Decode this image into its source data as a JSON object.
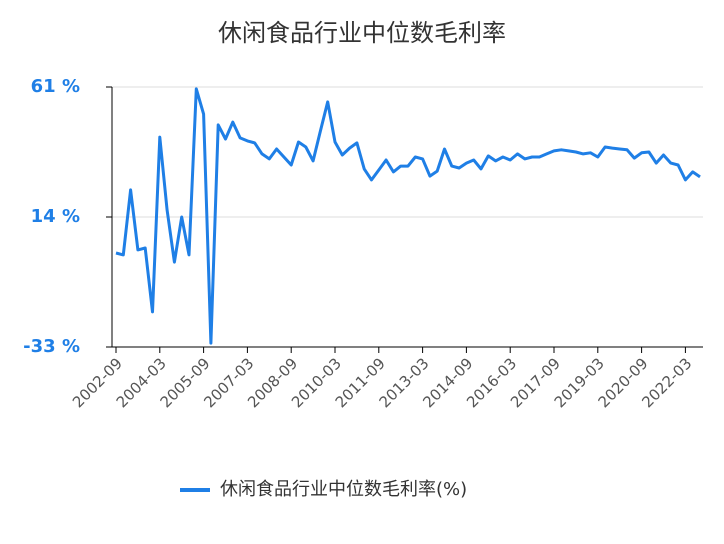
{
  "chart_data": {
    "type": "line",
    "title": "休闲食品行业中位数毛利率",
    "categories": [
      "2002-09",
      null,
      null,
      null,
      null,
      null,
      "2004-03",
      null,
      null,
      null,
      null,
      null,
      "2005-09",
      null,
      null,
      null,
      null,
      null,
      "2007-03",
      null,
      null,
      null,
      null,
      null,
      "2008-09",
      null,
      null,
      null,
      null,
      null,
      "2010-03",
      null,
      null,
      null,
      null,
      null,
      "2011-09",
      null,
      null,
      null,
      null,
      null,
      "2013-03",
      null,
      null,
      null,
      null,
      null,
      "2014-09",
      null,
      null,
      null,
      null,
      null,
      "2016-03",
      null,
      null,
      null,
      null,
      null,
      "2017-09",
      null,
      null,
      null,
      null,
      null,
      "2019-03",
      null,
      null,
      null,
      null,
      null,
      "2020-09",
      null,
      null,
      null,
      null,
      null,
      "2022-03",
      null,
      null
    ],
    "series": [
      {
        "name": "休闲食品行业中位数毛利率(%)",
        "color": "#1f7fe6",
        "values": [
          1.0,
          0.3,
          23.8,
          2.1,
          2.8,
          -20.3,
          42.9,
          16.5,
          -2.3,
          14.0,
          0.3,
          60.3,
          51.2,
          -31.6,
          47.3,
          42.2,
          48.3,
          42.6,
          41.5,
          40.8,
          36.8,
          35.0,
          38.6,
          35.7,
          32.8,
          41.1,
          39.3,
          34.3,
          45.1,
          55.6,
          41.1,
          36.4,
          38.9,
          40.8,
          31.4,
          27.4,
          31.0,
          34.6,
          30.3,
          32.4,
          32.4,
          35.7,
          35.0,
          28.8,
          30.6,
          38.6,
          32.4,
          31.7,
          33.5,
          34.6,
          31.4,
          36.1,
          34.3,
          35.7,
          34.6,
          36.8,
          35.0,
          35.7,
          35.7,
          36.8,
          37.9,
          38.3,
          37.9,
          37.5,
          36.8,
          37.2,
          35.7,
          39.3,
          38.9,
          38.6,
          38.3,
          35.3,
          37.2,
          37.5,
          33.5,
          36.4,
          33.5,
          32.8,
          27.4,
          30.3,
          28.5
        ]
      }
    ],
    "ylim": [
      -33,
      61
    ],
    "yticks": [
      {
        "value": -33,
        "label": "-33 %"
      },
      {
        "value": 14,
        "label": "14 %"
      },
      {
        "value": 61,
        "label": "61 %"
      }
    ],
    "grid": true
  }
}
